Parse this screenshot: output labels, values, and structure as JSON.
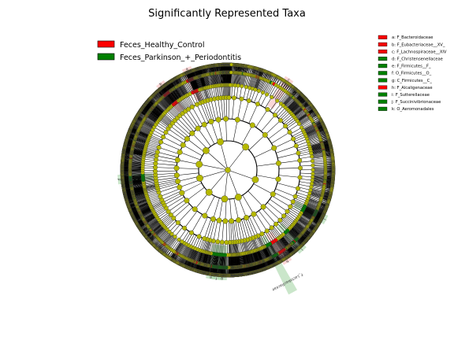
{
  "chart_data": {
    "type": "cladogram",
    "title": "Significantly Represented Taxa",
    "legend": [
      {
        "name": "Feces_Healthy_Control",
        "color": "#ff0000"
      },
      {
        "name": "Feces_Parkinson_+_Periodontitis",
        "color": "#008000"
      }
    ],
    "legend_placement": "top-left",
    "key_placement": "top-right",
    "colors": {
      "neutral_node": "#b5b800",
      "healthy_shade": "#f7b6b6",
      "parkinson_shade": "#9fd19f"
    },
    "key": [
      {
        "label": "a: F_Bacteroidaceae",
        "group": "Feces_Healthy_Control"
      },
      {
        "label": "b: F_Eubacteriaceae__XV_",
        "group": "Feces_Healthy_Control"
      },
      {
        "label": "c: F_Lachnospiraceae__XIV",
        "group": "Feces_Healthy_Control"
      },
      {
        "label": "d: F_Christensenellaceae",
        "group": "Feces_Parkinson_+_Periodontitis"
      },
      {
        "label": "e: F_Firmicutes__F_",
        "group": "Feces_Parkinson_+_Periodontitis"
      },
      {
        "label": "f: O_Firmicutes__O_",
        "group": "Feces_Parkinson_+_Periodontitis"
      },
      {
        "label": "g: C_Firmicutes__C_",
        "group": "Feces_Parkinson_+_Periodontitis"
      },
      {
        "label": "h: F_Alcaligenaceae",
        "group": "Feces_Healthy_Control"
      },
      {
        "label": "i: F_Sutterellaceae",
        "group": "Feces_Parkinson_+_Periodontitis"
      },
      {
        "label": "j: F_Succinivibrionaceae",
        "group": "Feces_Parkinson_+_Periodontitis"
      },
      {
        "label": "k: O_Aeromonadales",
        "group": "Feces_Parkinson_+_Periodontitis"
      }
    ],
    "clade_labels": [
      {
        "text": "a",
        "group": "Feces_Healthy_Control",
        "angle_deg": 248
      },
      {
        "text": "b",
        "group": "Feces_Healthy_Control",
        "angle_deg": 232
      },
      {
        "text": "c",
        "group": "Feces_Healthy_Control",
        "angle_deg": 304
      },
      {
        "text": "d",
        "group": "Feces_Parkinson_+_Periodontitis",
        "angle_deg": 175
      },
      {
        "text": "e",
        "group": "Feces_Parkinson_+_Periodontitis",
        "angle_deg": 99
      },
      {
        "text": "f",
        "group": "Feces_Parkinson_+_Periodontitis",
        "angle_deg": 96
      },
      {
        "text": "g",
        "group": "Feces_Parkinson_+_Periodontitis",
        "angle_deg": 93
      },
      {
        "text": "h",
        "group": "Feces_Healthy_Control",
        "angle_deg": 57
      },
      {
        "text": "i",
        "group": "Feces_Parkinson_+_Periodontitis",
        "angle_deg": 47
      },
      {
        "text": "j",
        "group": "Feces_Parkinson_+_Periodontitis",
        "angle_deg": 27
      },
      {
        "text": "F_Lactobacillaceae",
        "group": "Feces_Parkinson_+_Periodontitis",
        "angle_deg": 62
      }
    ]
  }
}
